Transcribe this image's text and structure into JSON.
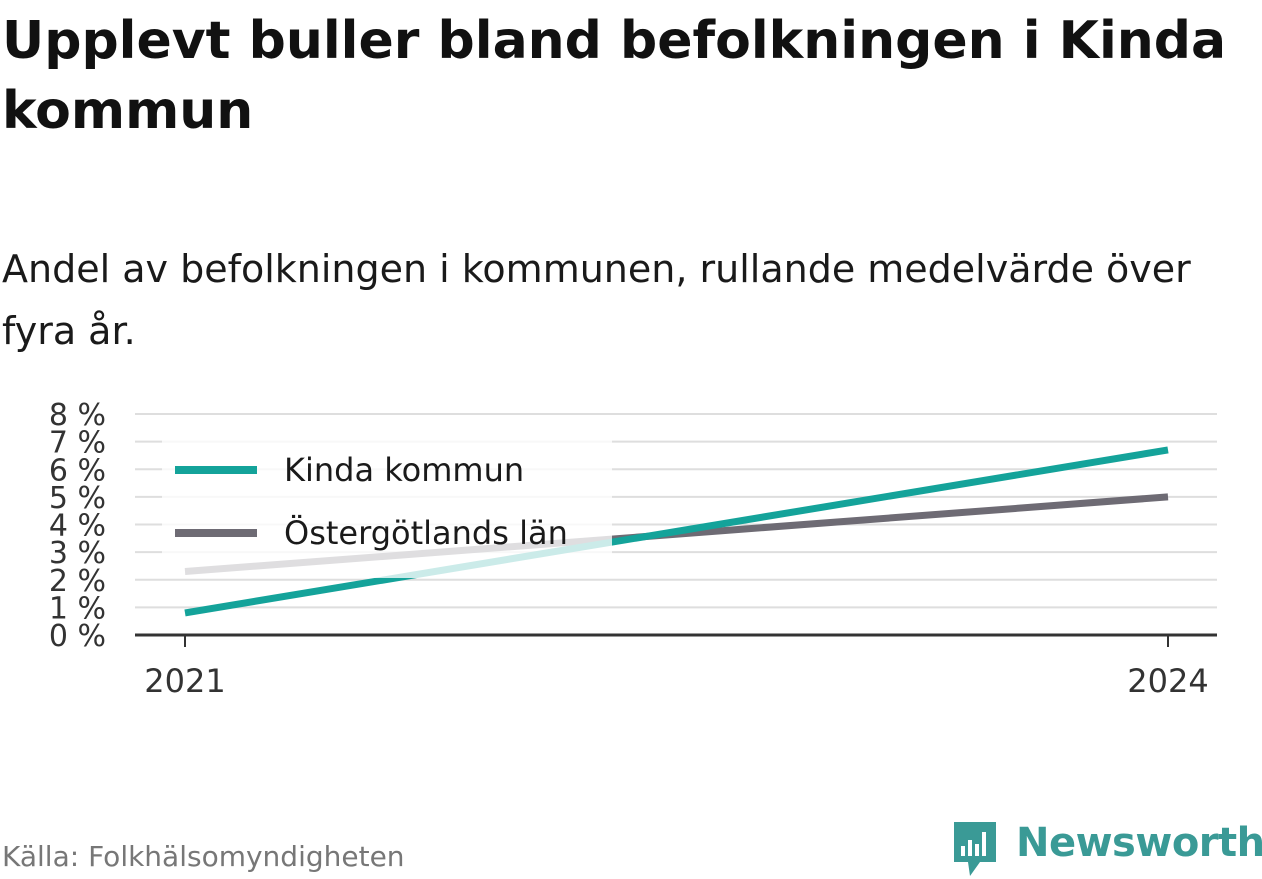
{
  "title": "Upplevt buller bland befolkningen i Kinda kommun",
  "subtitle": "Andel av befolkningen i kommunen, rullande medelvärde över fyra år.",
  "source": "Källa: Folkhälsomyndigheten",
  "brand": {
    "name": "Newsworthy",
    "icon": "newsworthy-logo-icon",
    "color": "#3a9a96"
  },
  "colors": {
    "kinda": "#14a39a",
    "lan": "#6e6b74",
    "grid": "#dedede",
    "axis": "#333333"
  },
  "chart_data": {
    "type": "line",
    "x": [
      "2021",
      "2024"
    ],
    "ylim": [
      0,
      8
    ],
    "yticks": [
      0,
      1,
      2,
      3,
      4,
      5,
      6,
      7,
      8
    ],
    "ytick_labels": [
      "0 %",
      "1 %",
      "2 %",
      "3 %",
      "4 %",
      "5 %",
      "6 %",
      "7 %",
      "8 %"
    ],
    "unit": "%",
    "grid": true,
    "legend_position": "top-left",
    "series": [
      {
        "name": "Kinda kommun",
        "values": [
          0.8,
          6.7
        ],
        "color": "#14a39a"
      },
      {
        "name": "Östergötlands län",
        "values": [
          2.3,
          5.0
        ],
        "color": "#6e6b74"
      }
    ]
  }
}
